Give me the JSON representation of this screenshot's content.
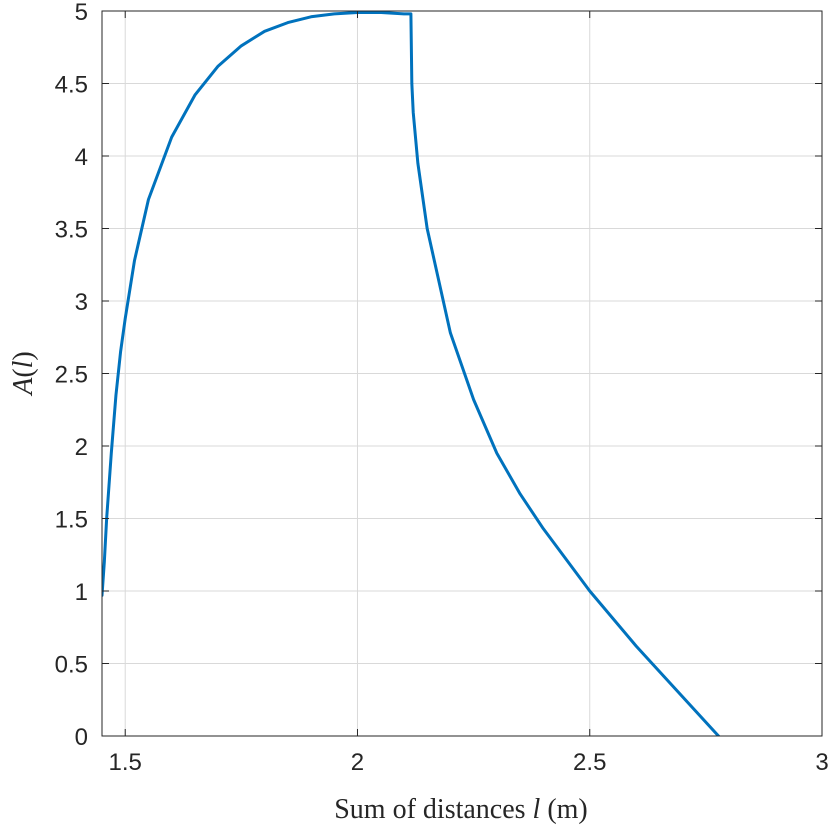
{
  "chart_data": {
    "type": "line",
    "xlabel": {
      "before": "Sum of distances ",
      "variable": "l",
      "after": " (m)"
    },
    "ylabel": {
      "before": "A(",
      "variable": "l",
      "after": ")"
    },
    "xlim": [
      1.45,
      3
    ],
    "ylim": [
      0,
      5
    ],
    "xticks": [
      1.5,
      2,
      2.5,
      3
    ],
    "xtick_labels": [
      "1.5",
      "2",
      "2.5",
      "3"
    ],
    "yticks": [
      0,
      0.5,
      1,
      1.5,
      2,
      2.5,
      3,
      3.5,
      4,
      4.5,
      5
    ],
    "ytick_labels": [
      "0",
      "0.5",
      "1",
      "1.5",
      "2",
      "2.5",
      "3",
      "3.5",
      "4",
      "4.5",
      "5"
    ],
    "grid": true,
    "series": [
      {
        "color": "#0072BD",
        "x": [
          1.45,
          1.455,
          1.46,
          1.47,
          1.48,
          1.49,
          1.5,
          1.52,
          1.55,
          1.6,
          1.65,
          1.7,
          1.75,
          1.8,
          1.85,
          1.9,
          1.95,
          2.0,
          2.05,
          2.1,
          2.115,
          2.117,
          2.12,
          2.13,
          2.15,
          2.2,
          2.25,
          2.3,
          2.35,
          2.4,
          2.5,
          2.6,
          2.7,
          2.8,
          2.85
        ],
        "y": [
          0.97,
          1.2,
          1.5,
          1.95,
          2.35,
          2.65,
          2.88,
          3.28,
          3.7,
          4.13,
          4.42,
          4.62,
          4.76,
          4.86,
          4.92,
          4.96,
          4.98,
          4.99,
          4.99,
          4.98,
          4.98,
          4.5,
          4.3,
          3.95,
          3.5,
          2.78,
          2.32,
          1.95,
          1.67,
          1.43,
          1.0,
          0.62,
          0.27,
          -0.08,
          -0.26
        ]
      }
    ]
  }
}
